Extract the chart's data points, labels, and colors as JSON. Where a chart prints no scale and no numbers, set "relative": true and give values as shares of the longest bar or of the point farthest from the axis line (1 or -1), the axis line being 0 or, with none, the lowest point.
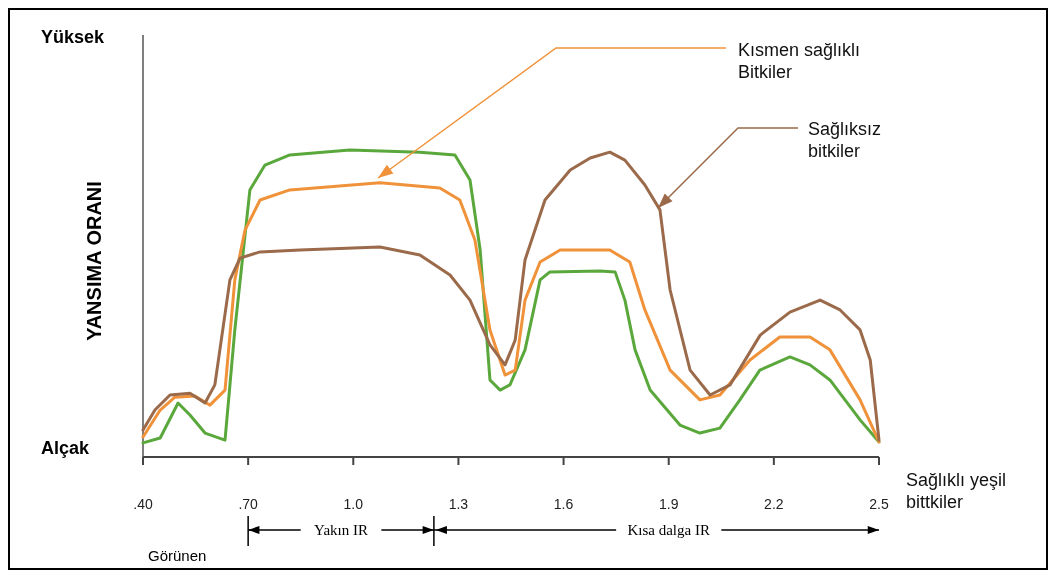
{
  "chart_data": {
    "type": "line",
    "relative": true,
    "ylabel": "YANSIMA ORANI",
    "marker": "none",
    "line_style": "solid",
    "xlim": [
      0.4,
      2.5
    ],
    "xticks": [
      {
        "value": 0.4,
        "label": ".40"
      },
      {
        "value": 0.7,
        "label": ".70"
      },
      {
        "value": 1.0,
        "label": "1.0"
      },
      1.3,
      1.6,
      1.9,
      2.2,
      2.5
    ],
    "annotations": [
      "Yüksek",
      "Alçak",
      "Görünen",
      "Yakın IR",
      "Kısa dalga IR"
    ],
    "series": [
      {
        "name": "Sağlıklı yeşil bittkiler",
        "color": "#5aa83c",
        "x": [
          0.4,
          0.449,
          0.5,
          0.534,
          0.577,
          0.634,
          0.662,
          0.705,
          0.748,
          0.819,
          0.99,
          1.19,
          1.29,
          1.333,
          1.362,
          1.39,
          1.419,
          1.447,
          1.49,
          1.533,
          1.561,
          1.704,
          1.747,
          1.775,
          1.804,
          1.847,
          1.932,
          1.989,
          2.046,
          2.103,
          2.16,
          2.246,
          2.303,
          2.36,
          2.446,
          2.5
        ],
        "values": [
          0.046,
          0.062,
          0.176,
          0.137,
          0.078,
          0.055,
          0.414,
          0.87,
          0.951,
          0.984,
          1,
          0.993,
          0.984,
          0.902,
          0.674,
          0.251,
          0.218,
          0.235,
          0.349,
          0.577,
          0.603,
          0.606,
          0.603,
          0.511,
          0.349,
          0.218,
          0.104,
          0.078,
          0.094,
          0.186,
          0.283,
          0.326,
          0.3,
          0.251,
          0.121,
          0.049
        ]
      },
      {
        "name": "Kısmen sağlıklı Bitkiler",
        "color": "#f0923a",
        "x": [
          0.4,
          0.449,
          0.491,
          0.548,
          0.591,
          0.634,
          0.662,
          0.691,
          0.734,
          0.819,
          1.076,
          1.247,
          1.304,
          1.347,
          1.39,
          1.433,
          1.462,
          1.49,
          1.533,
          1.59,
          1.732,
          1.789,
          1.832,
          1.904,
          1.989,
          2.046,
          2.132,
          2.217,
          2.303,
          2.36,
          2.446,
          2.5
        ],
        "values": [
          0.065,
          0.153,
          0.195,
          0.199,
          0.169,
          0.218,
          0.577,
          0.739,
          0.837,
          0.87,
          0.893,
          0.876,
          0.837,
          0.707,
          0.414,
          0.267,
          0.283,
          0.511,
          0.635,
          0.674,
          0.674,
          0.635,
          0.479,
          0.283,
          0.186,
          0.202,
          0.316,
          0.391,
          0.391,
          0.349,
          0.186,
          0.049
        ]
      },
      {
        "name": "Sağlıksız bitkiler",
        "color": "#9a6a4a",
        "x": [
          0.4,
          0.434,
          0.477,
          0.534,
          0.577,
          0.605,
          0.648,
          0.677,
          0.734,
          0.848,
          1.076,
          1.19,
          1.276,
          1.333,
          1.39,
          1.433,
          1.462,
          1.49,
          1.547,
          1.619,
          1.676,
          1.732,
          1.775,
          1.832,
          1.875,
          1.904,
          1.961,
          2.018,
          2.075,
          2.161,
          2.246,
          2.332,
          2.389,
          2.446,
          2.475,
          2.5
        ],
        "values": [
          0.088,
          0.153,
          0.202,
          0.208,
          0.176,
          0.235,
          0.577,
          0.648,
          0.668,
          0.674,
          0.684,
          0.658,
          0.593,
          0.511,
          0.365,
          0.3,
          0.381,
          0.642,
          0.837,
          0.935,
          0.974,
          0.993,
          0.967,
          0.886,
          0.805,
          0.544,
          0.283,
          0.202,
          0.235,
          0.397,
          0.472,
          0.511,
          0.479,
          0.414,
          0.316,
          0.055
        ]
      }
    ]
  }
}
